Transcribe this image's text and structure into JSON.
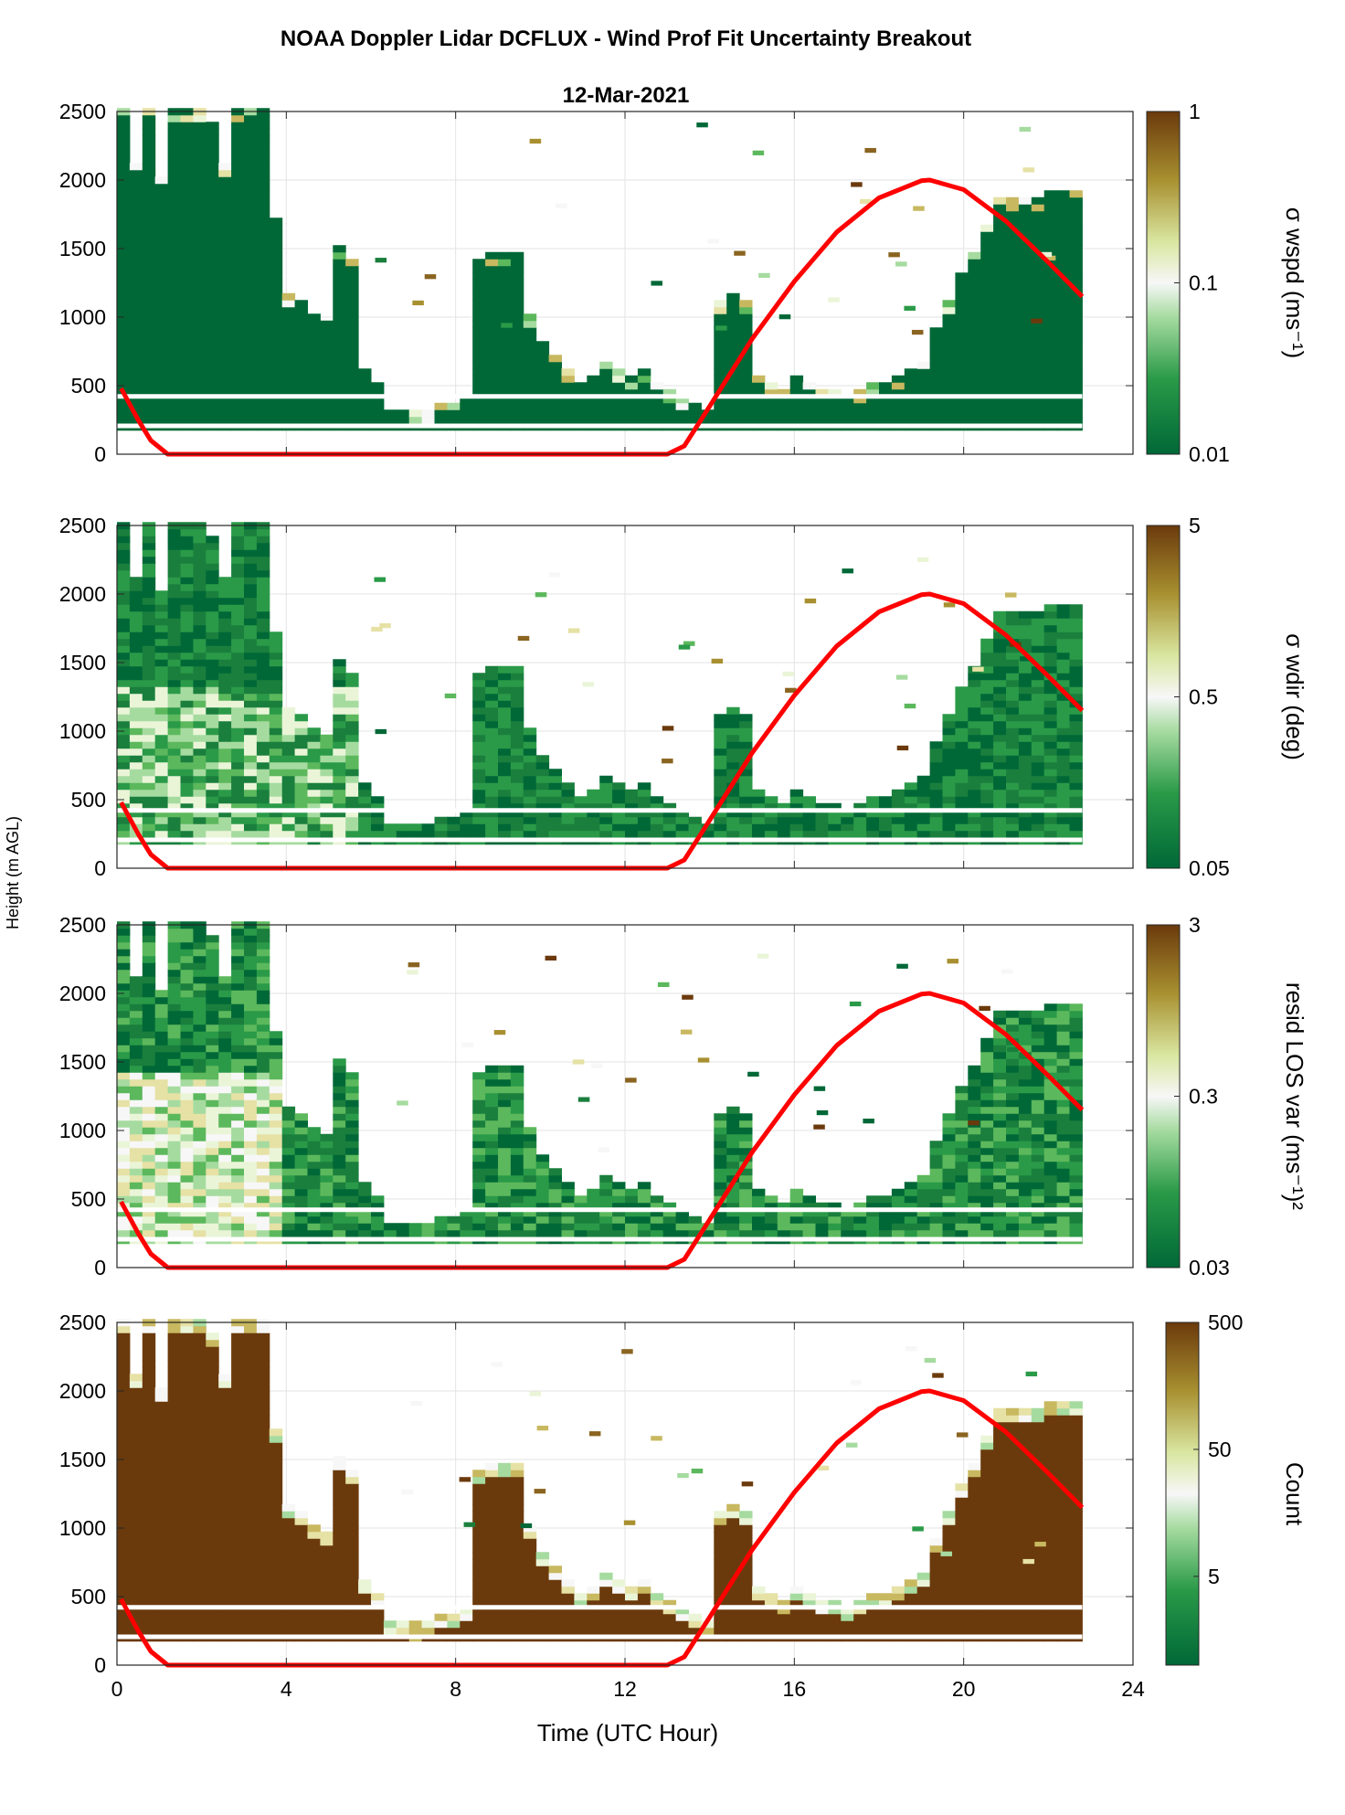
{
  "title": "NOAA Doppler Lidar DCFLUX - Wind Prof Fit Uncertainty Breakout",
  "date_label": "12-Mar-2021",
  "chart_data": [
    {
      "type": "heatmap",
      "panel": "sigma-wspd",
      "colorbar_label": "σ wspd (ms⁻¹)",
      "colorbar_scale": "log",
      "colorbar_range": [
        0.01,
        1
      ],
      "colorbar_ticks": [
        "0.01",
        "0.1",
        "1"
      ],
      "colormap": "green-white-brown",
      "ylim": [
        0,
        2500
      ],
      "xlim": [
        0,
        24
      ]
    },
    {
      "type": "heatmap",
      "panel": "sigma-wdir",
      "colorbar_label": "σ wdir (deg)",
      "colorbar_scale": "log",
      "colorbar_range": [
        0.05,
        5
      ],
      "colorbar_ticks": [
        "0.05",
        "0.5",
        "5"
      ],
      "colormap": "green-white-brown",
      "ylim": [
        0,
        2500
      ],
      "xlim": [
        0,
        24
      ]
    },
    {
      "type": "heatmap",
      "panel": "resid-los-var",
      "colorbar_label": "resid LOS var (ms⁻¹)²",
      "colorbar_scale": "log",
      "colorbar_range": [
        0.03,
        3
      ],
      "colorbar_ticks": [
        "0.03",
        "0.3",
        "3"
      ],
      "colormap": "green-white-brown",
      "ylim": [
        0,
        2500
      ],
      "xlim": [
        0,
        24
      ]
    },
    {
      "type": "heatmap",
      "panel": "count",
      "colorbar_label": "Count",
      "colorbar_scale": "log",
      "colorbar_range": [
        1,
        500
      ],
      "colorbar_ticks": [
        "5",
        "50",
        "500"
      ],
      "colormap": "green-white-brown",
      "ylim": [
        0,
        2500
      ],
      "xlim": [
        0,
        24
      ]
    }
  ],
  "shared": {
    "ylabel": "Height (m AGL)",
    "xlabel": "Time (UTC Hour)",
    "yticks": [
      0,
      500,
      1000,
      1500,
      2000,
      2500
    ],
    "xticks": [
      0,
      4,
      8,
      12,
      16,
      20,
      24
    ],
    "grid": true,
    "data_extent_hours": [
      0.1,
      22.8
    ],
    "white_gap_heights_m": [
      210,
      425
    ],
    "sun_elevation_line": {
      "color": "#ff0000",
      "x": [
        0.1,
        0.5,
        0.8,
        1.2,
        13.0,
        13.4,
        14,
        15,
        16,
        17,
        18,
        19,
        19.2,
        20,
        21,
        22,
        22.8
      ],
      "y": [
        480,
        250,
        100,
        0,
        0,
        60,
        350,
        840,
        1260,
        1620,
        1870,
        1995,
        2000,
        1930,
        1700,
        1400,
        1150
      ]
    },
    "column_top_heights": {
      "x": [
        0.3,
        0.6,
        0.9,
        1.2,
        1.5,
        1.8,
        2.1,
        2.4,
        2.7,
        3.0,
        3.3,
        3.6,
        3.9,
        4.2,
        4.5,
        4.8,
        5.1,
        5.4,
        5.7,
        6.0,
        6.3,
        6.6,
        6.9,
        7.2,
        7.5,
        7.8,
        8.1,
        8.4,
        8.7,
        9.0,
        9.3,
        9.6,
        9.9,
        10.2,
        10.5,
        10.8,
        11.1,
        11.4,
        11.7,
        12.0,
        12.3,
        12.6,
        12.9,
        13.2,
        13.5,
        13.8,
        14.1,
        14.4,
        14.7,
        15.0,
        15.3,
        15.6,
        15.9,
        16.2,
        16.5,
        16.8,
        17.1,
        17.4,
        17.7,
        18.0,
        18.3,
        18.6,
        18.9,
        19.2,
        19.5,
        19.8,
        20.1,
        20.4,
        20.7,
        21.0,
        21.3,
        21.6,
        21.9,
        22.2,
        22.5,
        22.8
      ],
      "top": [
        2500,
        2100,
        2500,
        2000,
        2500,
        2500,
        2500,
        2400,
        2100,
        2500,
        2500,
        2500,
        1700,
        1150,
        1100,
        1000,
        950,
        1500,
        1400,
        600,
        500,
        300,
        300,
        280,
        300,
        350,
        350,
        400,
        1400,
        1450,
        1450,
        1450,
        1000,
        800,
        700,
        600,
        500,
        550,
        650,
        600,
        550,
        600,
        500,
        450,
        400,
        350,
        300,
        1100,
        1150,
        1100,
        550,
        500,
        450,
        550,
        500,
        450,
        450,
        420,
        450,
        500,
        500,
        550,
        600,
        650,
        900,
        1100,
        1300,
        1450,
        1650,
        1850,
        1850,
        1850,
        1850,
        1900,
        1900,
        1900
      ]
    }
  }
}
